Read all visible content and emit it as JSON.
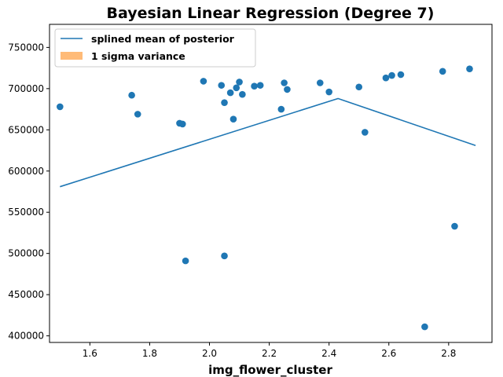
{
  "chart_data": {
    "type": "scatter",
    "title": "Bayesian Linear Regression (Degree 7)",
    "xlabel": "img_flower_cluster",
    "ylabel": "",
    "xlim": [
      1.465,
      2.945
    ],
    "ylim": [
      392000,
      778000
    ],
    "xticks": [
      1.6,
      1.8,
      2.0,
      2.2,
      2.4,
      2.6,
      2.8
    ],
    "xtick_labels": [
      "1.6",
      "1.8",
      "2.0",
      "2.2",
      "2.4",
      "2.6",
      "2.8"
    ],
    "yticks": [
      400000,
      450000,
      500000,
      550000,
      600000,
      650000,
      700000,
      750000
    ],
    "ytick_labels": [
      "400000",
      "450000",
      "500000",
      "550000",
      "600000",
      "650000",
      "700000",
      "750000"
    ],
    "legend_position": "top-left",
    "grid": false,
    "series": [
      {
        "name": "splined mean of posterior",
        "type": "line",
        "color": "#1f77b4",
        "x": [
          1.5,
          2.43,
          2.89
        ],
        "y": [
          581000,
          688000,
          631000
        ]
      },
      {
        "name": "1 sigma variance",
        "type": "area",
        "color": "#ffbb78",
        "x": [],
        "y": []
      },
      {
        "name": "",
        "type": "scatter",
        "color": "#1f77b4",
        "x": [
          1.5,
          1.74,
          1.76,
          1.9,
          1.91,
          1.92,
          1.98,
          2.04,
          2.05,
          2.05,
          2.07,
          2.08,
          2.09,
          2.1,
          2.11,
          2.15,
          2.17,
          2.24,
          2.25,
          2.26,
          2.37,
          2.4,
          2.5,
          2.52,
          2.59,
          2.61,
          2.64,
          2.72,
          2.78,
          2.82,
          2.87
        ],
        "y": [
          678000,
          692000,
          669000,
          658000,
          657000,
          491000,
          709000,
          704000,
          683000,
          497000,
          695000,
          663000,
          701000,
          708000,
          693000,
          703000,
          704000,
          675000,
          707000,
          699000,
          707000,
          696000,
          702000,
          647000,
          713000,
          716000,
          717000,
          411000,
          721000,
          533000,
          724000
        ]
      }
    ]
  }
}
